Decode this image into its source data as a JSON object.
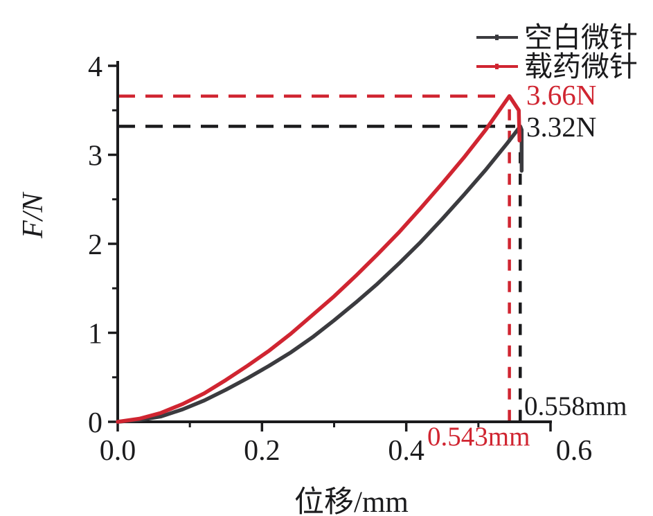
{
  "figure": {
    "background": "#ffffff"
  },
  "colors": {
    "loaded_red": "#d02531",
    "blank_dark": "#3b3b3f",
    "axis_black": "#1b1b1d"
  },
  "legend": {
    "position": "top-right",
    "items": [
      {
        "label": "空白微针",
        "color": "#3b3b3f"
      },
      {
        "label": "载药微针",
        "color": "#d02531"
      }
    ]
  },
  "axes": {
    "x_label": "位移/mm",
    "y_label": "F/N"
  },
  "annotations": {
    "red_peak_force": "3.66N",
    "black_peak_force": "3.32N",
    "black_peak_displacement": "0.558mm",
    "red_peak_displacement": "0.543mm"
  },
  "chart_data": {
    "type": "line",
    "title": "",
    "xlabel": "位移/mm",
    "ylabel": "F/N",
    "xlim": [
      0,
      0.6
    ],
    "ylim": [
      0,
      4
    ],
    "grid": false,
    "legend_position": "top-right",
    "x_ticks": [
      {
        "value": 0.0,
        "label": "0.0",
        "label_dx": 0
      },
      {
        "value": 0.2,
        "label": "0.2",
        "label_dx": 0
      },
      {
        "value": 0.4,
        "label": "0.4",
        "label_dx": 0
      },
      {
        "value": 0.6,
        "label": "0.6",
        "label_dx": 34
      }
    ],
    "x_minor_ticks": [
      0.1,
      0.3,
      0.5
    ],
    "y_ticks": [
      {
        "value": 0,
        "label": "0"
      },
      {
        "value": 1,
        "label": "1"
      },
      {
        "value": 2,
        "label": "2"
      },
      {
        "value": 3,
        "label": "3"
      },
      {
        "value": 4,
        "label": "4"
      }
    ],
    "y_minor_ticks": [
      0.5,
      1.5,
      2.5,
      3.5
    ],
    "series": [
      {
        "name": "空白微针",
        "color": "#3b3b3f",
        "peak": {
          "displacement_mm": 0.558,
          "force_N": 3.32
        },
        "points": [
          [
            0,
            0
          ],
          [
            0.03,
            0.02
          ],
          [
            0.06,
            0.06
          ],
          [
            0.09,
            0.14
          ],
          [
            0.12,
            0.24
          ],
          [
            0.15,
            0.36
          ],
          [
            0.18,
            0.49
          ],
          [
            0.21,
            0.63
          ],
          [
            0.24,
            0.78
          ],
          [
            0.27,
            0.95
          ],
          [
            0.3,
            1.14
          ],
          [
            0.33,
            1.34
          ],
          [
            0.36,
            1.55
          ],
          [
            0.39,
            1.78
          ],
          [
            0.42,
            2.02
          ],
          [
            0.45,
            2.28
          ],
          [
            0.48,
            2.55
          ],
          [
            0.51,
            2.83
          ],
          [
            0.54,
            3.13
          ],
          [
            0.558,
            3.32
          ],
          [
            0.56,
            3.28
          ],
          [
            0.56,
            2.82
          ]
        ]
      },
      {
        "name": "载药微针",
        "color": "#d02531",
        "peak": {
          "displacement_mm": 0.543,
          "force_N": 3.66
        },
        "points": [
          [
            0,
            0
          ],
          [
            0.03,
            0.035
          ],
          [
            0.06,
            0.1
          ],
          [
            0.09,
            0.2
          ],
          [
            0.12,
            0.32
          ],
          [
            0.15,
            0.47
          ],
          [
            0.18,
            0.63
          ],
          [
            0.21,
            0.8
          ],
          [
            0.24,
            0.99
          ],
          [
            0.27,
            1.2
          ],
          [
            0.3,
            1.41
          ],
          [
            0.33,
            1.64
          ],
          [
            0.36,
            1.88
          ],
          [
            0.39,
            2.13
          ],
          [
            0.42,
            2.4
          ],
          [
            0.45,
            2.68
          ],
          [
            0.48,
            2.97
          ],
          [
            0.51,
            3.28
          ],
          [
            0.543,
            3.66
          ],
          [
            0.556,
            3.5
          ],
          [
            0.557,
            3.16
          ]
        ]
      }
    ],
    "marker_lines": [
      {
        "orient": "h",
        "y": 3.66,
        "x_from": 0,
        "x_to": 0.532,
        "color": "#d02531",
        "dash": "25 15"
      },
      {
        "orient": "h",
        "y": 3.32,
        "x_from": 0,
        "x_to": 0.551,
        "color": "#1b1b1d",
        "dash": "25 15"
      },
      {
        "orient": "v",
        "x": 0.543,
        "y_from": 0.01,
        "y_to": 3.55,
        "color": "#d02531",
        "dash": "16 15"
      },
      {
        "orient": "v",
        "x": 0.558,
        "y_from": 0.01,
        "y_to": 3.24,
        "color": "#1b1b1d",
        "dash": "16 15"
      }
    ]
  }
}
